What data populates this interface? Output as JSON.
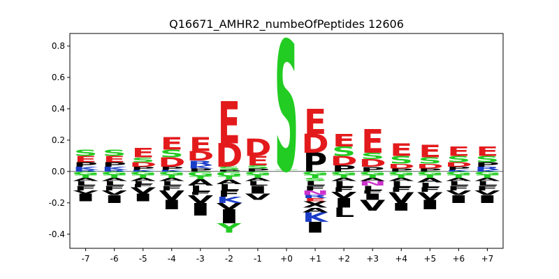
{
  "chart_data": {
    "type": "sequence-logo",
    "title": "Q16671_AMHR2_numbeOfPeptides 12606",
    "xlabel": "",
    "ylabel": "",
    "ylim": [
      -0.49,
      0.88
    ],
    "y_ticks": [
      "-0.4",
      "-0.2",
      "0.0",
      "0.2",
      "0.4",
      "0.6",
      "0.8"
    ],
    "y_tick_values": [
      -0.4,
      -0.2,
      0.0,
      0.2,
      0.4,
      0.6,
      0.8
    ],
    "positions": [
      "-7",
      "-6",
      "-5",
      "-4",
      "-3",
      "-2",
      "-1",
      "+0",
      "+1",
      "+2",
      "+3",
      "+4",
      "+5",
      "+6",
      "+7"
    ],
    "colors": {
      "acidic": "#e31a1c",
      "polar": "#22cc22",
      "basic": "#1b3ec8",
      "hydrophobic": "#000000",
      "amide": "#cc33cc"
    },
    "residue_colors": {
      "D": "#e31a1c",
      "E": "#e31a1c",
      "S": "#22cc22",
      "T": "#22cc22",
      "G": "#22cc22",
      "Y": "#22cc22",
      "C": "#22cc22",
      "K": "#1b3ec8",
      "R": "#1b3ec8",
      "H": "#1b3ec8",
      "N": "#cc33cc",
      "Q": "#cc33cc",
      "P": "#000000",
      "A": "#000000",
      "V": "#000000",
      "L": "#000000",
      "I": "#000000",
      "M": "#000000",
      "F": "#000000",
      "W": "#000000"
    },
    "stacks": [
      {
        "pos": "-7",
        "up": [
          [
            "R",
            0.01
          ],
          [
            "K",
            0.02
          ],
          [
            "P",
            0.03
          ],
          [
            "E",
            0.04
          ],
          [
            "S",
            0.04
          ]
        ],
        "down": [
          [
            "G",
            0.02
          ],
          [
            "T",
            0.02
          ],
          [
            "A",
            0.02
          ],
          [
            "L",
            0.03
          ],
          [
            "F",
            0.03
          ],
          [
            "V",
            0.02
          ],
          [
            "I",
            0.05
          ]
        ]
      },
      {
        "pos": "-6",
        "up": [
          [
            "R",
            0.01
          ],
          [
            "K",
            0.02
          ],
          [
            "P",
            0.03
          ],
          [
            "E",
            0.04
          ],
          [
            "S",
            0.04
          ]
        ],
        "down": [
          [
            "G",
            0.02
          ],
          [
            "T",
            0.02
          ],
          [
            "A",
            0.02
          ],
          [
            "L",
            0.03
          ],
          [
            "F",
            0.03
          ],
          [
            "V",
            0.03
          ],
          [
            "I",
            0.05
          ]
        ]
      },
      {
        "pos": "-5",
        "up": [
          [
            "K",
            0.01
          ],
          [
            "P",
            0.02
          ],
          [
            "D",
            0.03
          ],
          [
            "S",
            0.03
          ],
          [
            "E",
            0.06
          ]
        ],
        "down": [
          [
            "G",
            0.02
          ],
          [
            "T",
            0.02
          ],
          [
            "A",
            0.02
          ],
          [
            "L",
            0.02
          ],
          [
            "F",
            0.02
          ],
          [
            "V",
            0.04
          ],
          [
            "I",
            0.05
          ]
        ]
      },
      {
        "pos": "-4",
        "up": [
          [
            "K",
            0.01
          ],
          [
            "P",
            0.02
          ],
          [
            "D",
            0.06
          ],
          [
            "S",
            0.05
          ],
          [
            "E",
            0.08
          ]
        ],
        "down": [
          [
            "G",
            0.02
          ],
          [
            "T",
            0.02
          ],
          [
            "A",
            0.02
          ],
          [
            "L",
            0.03
          ],
          [
            "F",
            0.03
          ],
          [
            "V",
            0.06
          ],
          [
            "I",
            0.06
          ]
        ]
      },
      {
        "pos": "-3",
        "up": [
          [
            "P",
            0.02
          ],
          [
            "K",
            0.02
          ],
          [
            "R",
            0.03
          ],
          [
            "D",
            0.06
          ],
          [
            "E",
            0.09
          ]
        ],
        "down": [
          [
            "G",
            0.03
          ],
          [
            "T",
            0.02
          ],
          [
            "A",
            0.04
          ],
          [
            "L",
            0.04
          ],
          [
            "F",
            0.02
          ],
          [
            "V",
            0.05
          ],
          [
            "I",
            0.08
          ]
        ]
      },
      {
        "pos": "-2",
        "up": [
          [
            "P",
            0.01
          ],
          [
            "S",
            0.02
          ],
          [
            "D",
            0.15
          ],
          [
            "E",
            0.27
          ]
        ],
        "down": [
          [
            "G",
            0.03
          ],
          [
            "T",
            0.02
          ],
          [
            "A",
            0.03
          ],
          [
            "L",
            0.04
          ],
          [
            "F",
            0.04
          ],
          [
            "K",
            0.04
          ],
          [
            "V",
            0.04
          ],
          [
            "I",
            0.09
          ],
          [
            "Y",
            0.06
          ]
        ]
      },
      {
        "pos": "-1",
        "up": [
          [
            "P",
            0.02
          ],
          [
            "S",
            0.02
          ],
          [
            "E",
            0.06
          ],
          [
            "D",
            0.11
          ]
        ],
        "down": [
          [
            "G",
            0.02
          ],
          [
            "T",
            0.02
          ],
          [
            "A",
            0.02
          ],
          [
            "L",
            0.03
          ],
          [
            "I",
            0.05
          ],
          [
            "V",
            0.04
          ]
        ]
      },
      {
        "pos": "+0",
        "up": [
          [
            "T",
            0.01
          ],
          [
            "S",
            0.83
          ]
        ],
        "down": []
      },
      {
        "pos": "+1",
        "up": [
          [
            "P",
            0.12
          ],
          [
            "D",
            0.12
          ],
          [
            "E",
            0.16
          ]
        ],
        "down": [
          [
            "G",
            0.02
          ],
          [
            "T",
            0.02
          ],
          [
            "S",
            0.02
          ],
          [
            "L",
            0.03
          ],
          [
            "F",
            0.03
          ],
          [
            "N",
            0.03
          ],
          [
            "R",
            0.02
          ],
          [
            "E",
            0.02
          ],
          [
            "X",
            0.04
          ],
          [
            "A",
            0.03
          ],
          [
            "K",
            0.06
          ],
          [
            "I",
            0.07
          ]
        ]
      },
      {
        "pos": "+2",
        "up": [
          [
            "P",
            0.04
          ],
          [
            "D",
            0.06
          ],
          [
            "S",
            0.06
          ],
          [
            "E",
            0.08
          ]
        ],
        "down": [
          [
            "G",
            0.02
          ],
          [
            "T",
            0.02
          ],
          [
            "A",
            0.02
          ],
          [
            "L",
            0.04
          ],
          [
            "F",
            0.03
          ],
          [
            "V",
            0.04
          ],
          [
            "I",
            0.06
          ],
          [
            "L",
            0.06
          ]
        ]
      },
      {
        "pos": "+3",
        "up": [
          [
            "P",
            0.03
          ],
          [
            "D",
            0.05
          ],
          [
            "S",
            0.04
          ],
          [
            "E",
            0.15
          ]
        ],
        "down": [
          [
            "G",
            0.02
          ],
          [
            "T",
            0.02
          ],
          [
            "A",
            0.02
          ],
          [
            "N",
            0.03
          ],
          [
            "L",
            0.03
          ],
          [
            "F",
            0.02
          ],
          [
            "I",
            0.04
          ],
          [
            "V",
            0.07
          ]
        ]
      },
      {
        "pos": "+4",
        "up": [
          [
            "P",
            0.02
          ],
          [
            "D",
            0.03
          ],
          [
            "S",
            0.05
          ],
          [
            "E",
            0.08
          ]
        ],
        "down": [
          [
            "G",
            0.02
          ],
          [
            "T",
            0.02
          ],
          [
            "A",
            0.02
          ],
          [
            "L",
            0.04
          ],
          [
            "F",
            0.03
          ],
          [
            "V",
            0.07
          ],
          [
            "I",
            0.05
          ]
        ]
      },
      {
        "pos": "+5",
        "up": [
          [
            "P",
            0.02
          ],
          [
            "D",
            0.03
          ],
          [
            "S",
            0.04
          ],
          [
            "E",
            0.08
          ]
        ],
        "down": [
          [
            "G",
            0.02
          ],
          [
            "T",
            0.02
          ],
          [
            "A",
            0.03
          ],
          [
            "L",
            0.03
          ],
          [
            "F",
            0.03
          ],
          [
            "V",
            0.05
          ],
          [
            "I",
            0.06
          ]
        ]
      },
      {
        "pos": "+6",
        "up": [
          [
            "K",
            0.01
          ],
          [
            "P",
            0.02
          ],
          [
            "D",
            0.03
          ],
          [
            "S",
            0.04
          ],
          [
            "E",
            0.06
          ]
        ],
        "down": [
          [
            "G",
            0.02
          ],
          [
            "T",
            0.02
          ],
          [
            "A",
            0.02
          ],
          [
            "L",
            0.03
          ],
          [
            "F",
            0.03
          ],
          [
            "V",
            0.03
          ],
          [
            "I",
            0.05
          ]
        ]
      },
      {
        "pos": "+7",
        "up": [
          [
            "K",
            0.01
          ],
          [
            "R",
            0.02
          ],
          [
            "P",
            0.03
          ],
          [
            "S",
            0.04
          ],
          [
            "E",
            0.06
          ]
        ],
        "down": [
          [
            "G",
            0.02
          ],
          [
            "T",
            0.02
          ],
          [
            "A",
            0.02
          ],
          [
            "L",
            0.03
          ],
          [
            "F",
            0.03
          ],
          [
            "V",
            0.03
          ],
          [
            "I",
            0.05
          ]
        ]
      }
    ]
  }
}
